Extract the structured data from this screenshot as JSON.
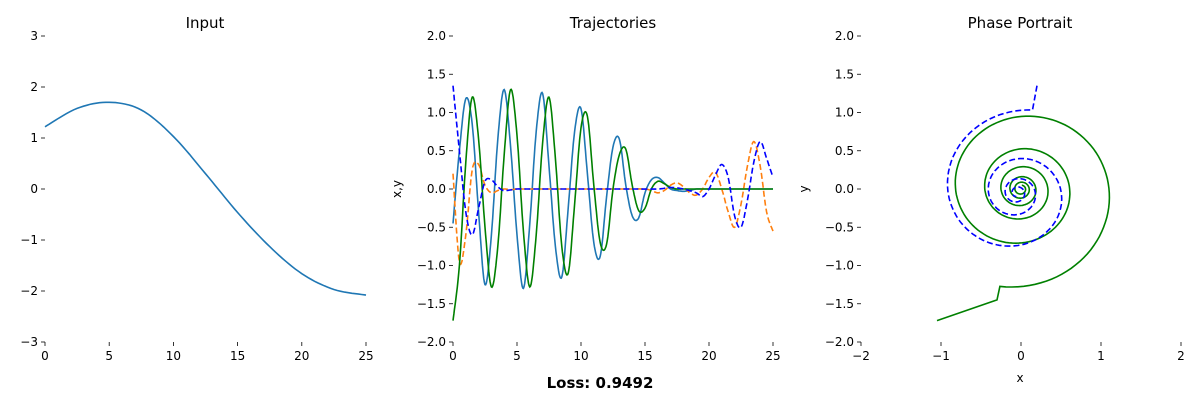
{
  "figure": {
    "loss_text": "Loss: 0.9492"
  },
  "colors": {
    "blue": "#1f77b4",
    "orange": "#ff7f0e",
    "green": "#008000",
    "dash_blue": "#0000ff"
  },
  "chart_data": [
    {
      "type": "line",
      "title": "Input",
      "xlabel": "",
      "ylabel": "",
      "xlim": [
        0,
        25
      ],
      "ylim": [
        -3,
        3
      ],
      "xticks": [
        "0",
        "5",
        "10",
        "15",
        "20",
        "25"
      ],
      "yticks": [
        "−3",
        "−2",
        "−1",
        "0",
        "1",
        "2",
        "3"
      ],
      "grid": false,
      "series": [
        {
          "color": "#1f77b4",
          "dash": false,
          "x": [
            0,
            2.5,
            5,
            7.5,
            10,
            12.5,
            15,
            17.5,
            20,
            22.5,
            25
          ],
          "y": [
            1.22,
            1.58,
            1.7,
            1.55,
            1.03,
            0.3,
            -0.46,
            -1.13,
            -1.66,
            -1.97,
            -2.08
          ]
        }
      ]
    },
    {
      "type": "line",
      "title": "Trajectories",
      "xlabel": "",
      "ylabel": "x,y",
      "xlim": [
        0,
        25
      ],
      "ylim": [
        -2,
        2
      ],
      "xticks": [
        "0",
        "5",
        "10",
        "15",
        "20",
        "25"
      ],
      "yticks": [
        "−2.0",
        "−1.5",
        "−1.0",
        "−0.5",
        "0.0",
        "0.5",
        "1.0",
        "1.5",
        "2.0"
      ],
      "grid": false,
      "series": [
        {
          "color": "#1f77b4",
          "dash": false,
          "x": [
            0,
            0.5,
            1.0,
            1.5,
            2.0,
            2.5,
            3.0,
            3.5,
            4.0,
            4.5,
            5.0,
            5.5,
            6.0,
            6.5,
            7.0,
            7.5,
            8.0,
            8.5,
            9.0,
            9.5,
            10.0,
            10.5,
            11.0,
            11.5,
            12.0,
            12.5,
            13.0,
            13.5,
            14.0,
            14.5,
            15.0,
            15.5,
            16.0,
            16.5,
            17.0,
            17.5,
            18.0,
            18.5,
            19.0,
            19.5,
            20.0,
            20.5,
            21.0,
            21.5,
            22.0,
            22.5,
            23.0,
            23.5,
            24.0,
            24.5,
            25.0
          ],
          "y": [
            -0.45,
            0.5,
            1.18,
            0.85,
            -0.3,
            -1.25,
            -0.6,
            0.65,
            1.3,
            0.55,
            -0.6,
            -1.3,
            -0.45,
            0.75,
            1.25,
            0.3,
            -0.75,
            -1.15,
            -0.25,
            0.75,
            1.05,
            0.2,
            -0.7,
            -0.88,
            -0.1,
            0.55,
            0.65,
            0.05,
            -0.35,
            -0.38,
            -0.05,
            0.12,
            0.15,
            0.08,
            0.0,
            -0.02,
            -0.03,
            -0.02,
            0.0,
            0.0,
            0.0,
            0.0,
            0.0,
            0.0,
            0.0,
            0.0,
            0.0,
            0.0,
            0.0,
            0.0,
            0.0
          ]
        },
        {
          "color": "#ff7f0e",
          "dash": true,
          "x": [
            0,
            0.5,
            1.0,
            1.5,
            2.0,
            2.5,
            3.0,
            3.5,
            4.0,
            4.5,
            5.0,
            6,
            8,
            10,
            12,
            14,
            15,
            15.5,
            16,
            16.5,
            17,
            17.5,
            18,
            18.5,
            19,
            19.5,
            20,
            20.5,
            21,
            21.5,
            22,
            22.5,
            23,
            23.5,
            24,
            24.5,
            25
          ],
          "y": [
            0.2,
            -0.95,
            -0.6,
            0.25,
            0.32,
            0.05,
            -0.05,
            -0.02,
            0.0,
            -0.01,
            0.0,
            0.0,
            0.0,
            0.0,
            0.0,
            0.0,
            0.0,
            -0.02,
            -0.05,
            -0.02,
            0.05,
            0.08,
            0.03,
            -0.05,
            -0.08,
            0.0,
            0.15,
            0.22,
            0.0,
            -0.3,
            -0.5,
            -0.2,
            0.3,
            0.62,
            0.3,
            -0.3,
            -0.55
          ]
        },
        {
          "color": "#008000",
          "dash": false,
          "x": [
            0,
            0.5,
            1.0,
            1.5,
            2.0,
            2.5,
            3.0,
            3.5,
            4.0,
            4.5,
            5.0,
            5.5,
            6.0,
            6.5,
            7.0,
            7.5,
            8.0,
            8.5,
            9.0,
            9.5,
            10.0,
            10.5,
            11.0,
            11.5,
            12.0,
            12.5,
            13.0,
            13.5,
            14.0,
            14.5,
            15.0,
            15.5,
            16.0,
            16.5,
            17.0,
            17.5,
            18.0,
            18.5,
            19.0,
            19.5,
            20.0,
            21,
            22,
            23,
            24,
            25
          ],
          "y": [
            -1.72,
            -1.0,
            0.35,
            1.2,
            0.65,
            -0.5,
            -1.28,
            -0.75,
            0.45,
            1.3,
            0.7,
            -0.55,
            -1.28,
            -0.6,
            0.6,
            1.2,
            0.4,
            -0.75,
            -1.1,
            -0.2,
            0.8,
            0.95,
            0.05,
            -0.7,
            -0.72,
            0.0,
            0.45,
            0.52,
            0.05,
            -0.28,
            -0.25,
            0.0,
            0.1,
            0.07,
            0.02,
            0.0,
            0.0,
            0.0,
            0.0,
            0.0,
            0.0,
            0.0,
            0.0,
            0.0,
            0.0,
            0.0
          ]
        },
        {
          "color": "#0000ff",
          "dash": true,
          "x": [
            0,
            0.5,
            1.0,
            1.5,
            2.0,
            2.5,
            3.0,
            3.5,
            4.0,
            5,
            6,
            8,
            10,
            12,
            14,
            16,
            17,
            18,
            19,
            19.5,
            20,
            20.5,
            21,
            21.5,
            22,
            22.5,
            23,
            23.5,
            24,
            24.5,
            25
          ],
          "y": [
            1.35,
            0.5,
            -0.3,
            -0.6,
            -0.25,
            0.1,
            0.12,
            0.03,
            -0.02,
            0.0,
            0.0,
            0.0,
            0.0,
            0.0,
            0.0,
            0.0,
            0.02,
            0.0,
            -0.05,
            -0.1,
            0.0,
            0.18,
            0.32,
            0.15,
            -0.35,
            -0.5,
            -0.15,
            0.35,
            0.62,
            0.4,
            0.15
          ]
        }
      ]
    },
    {
      "type": "line",
      "title": "Phase Portrait",
      "xlabel": "x",
      "ylabel": "y",
      "xlim": [
        -2,
        2
      ],
      "ylim": [
        -2,
        2
      ],
      "xticks": [
        "−2",
        "−1",
        "0",
        "1",
        "2"
      ],
      "yticks": [
        "−2.0",
        "−1.5",
        "−1.0",
        "−0.5",
        "0.0",
        "0.5",
        "1.0",
        "1.5",
        "2.0"
      ],
      "grid": false,
      "series": [
        {
          "color": "#008000",
          "dash": false,
          "spiral": {
            "start": [
              -1.05,
              -1.72
            ],
            "entry": [
              -0.3,
              -1.45
            ],
            "r0": 1.3,
            "r1": 0.05,
            "turns": 5.5,
            "cy": 0.0,
            "cx": 0.0
          }
        },
        {
          "color": "#0000ff",
          "dash": true,
          "spiral": {
            "start": [
              0.2,
              1.35
            ],
            "entry": [
              0.2,
              1.35
            ],
            "r0": 1.1,
            "r1": 0.05,
            "turns": 3.5,
            "cy": -0.05,
            "cx": -0.05
          }
        }
      ]
    }
  ]
}
